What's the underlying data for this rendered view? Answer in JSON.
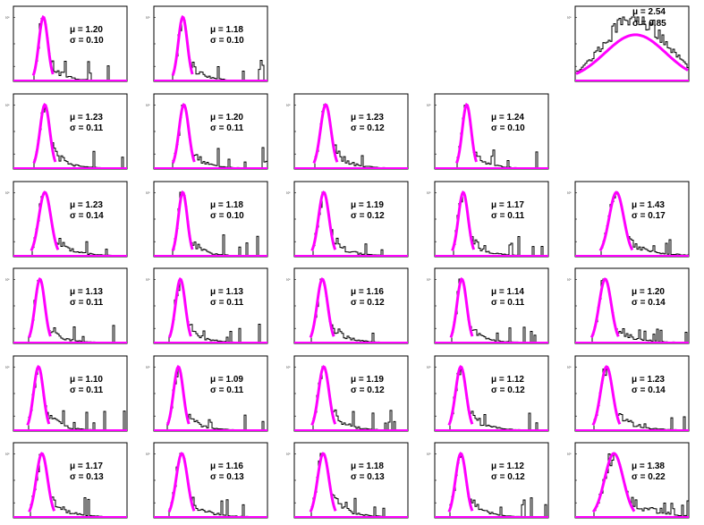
{
  "accent_color": "#ff00ff",
  "histogram_color": "#000000",
  "chart_data": {
    "type": "histogram-grid",
    "rows": 6,
    "cols": 5,
    "tick_label": "10³",
    "xlabel": "",
    "ylabel": "",
    "panels": [
      {
        "row": 0,
        "col": 0,
        "mu": "1.20",
        "sigma": "0.10",
        "fit": "gaussian"
      },
      {
        "row": 0,
        "col": 1,
        "mu": "1.18",
        "sigma": "0.10",
        "fit": "gaussian"
      },
      {
        "row": 0,
        "col": 4,
        "mu": "2.54",
        "sigma": "0.85",
        "fit": "gaussian"
      },
      {
        "row": 1,
        "col": 0,
        "mu": "1.23",
        "sigma": "0.11",
        "fit": "gaussian"
      },
      {
        "row": 1,
        "col": 1,
        "mu": "1.20",
        "sigma": "0.11",
        "fit": "gaussian"
      },
      {
        "row": 1,
        "col": 2,
        "mu": "1.23",
        "sigma": "0.12",
        "fit": "gaussian"
      },
      {
        "row": 1,
        "col": 3,
        "mu": "1.24",
        "sigma": "0.10",
        "fit": "gaussian"
      },
      {
        "row": 2,
        "col": 0,
        "mu": "1.23",
        "sigma": "0.14",
        "fit": "gaussian"
      },
      {
        "row": 2,
        "col": 1,
        "mu": "1.18",
        "sigma": "0.10",
        "fit": "gaussian"
      },
      {
        "row": 2,
        "col": 2,
        "mu": "1.19",
        "sigma": "0.12",
        "fit": "gaussian"
      },
      {
        "row": 2,
        "col": 3,
        "mu": "1.17",
        "sigma": "0.11",
        "fit": "gaussian"
      },
      {
        "row": 2,
        "col": 4,
        "mu": "1.43",
        "sigma": "0.17",
        "fit": "gaussian"
      },
      {
        "row": 3,
        "col": 0,
        "mu": "1.13",
        "sigma": "0.11",
        "fit": "gaussian"
      },
      {
        "row": 3,
        "col": 1,
        "mu": "1.13",
        "sigma": "0.11",
        "fit": "gaussian"
      },
      {
        "row": 3,
        "col": 2,
        "mu": "1.16",
        "sigma": "0.12",
        "fit": "gaussian"
      },
      {
        "row": 3,
        "col": 3,
        "mu": "1.14",
        "sigma": "0.11",
        "fit": "gaussian"
      },
      {
        "row": 3,
        "col": 4,
        "mu": "1.20",
        "sigma": "0.14",
        "fit": "gaussian"
      },
      {
        "row": 4,
        "col": 0,
        "mu": "1.10",
        "sigma": "0.11",
        "fit": "gaussian"
      },
      {
        "row": 4,
        "col": 1,
        "mu": "1.09",
        "sigma": "0.11",
        "fit": "gaussian"
      },
      {
        "row": 4,
        "col": 2,
        "mu": "1.19",
        "sigma": "0.12",
        "fit": "gaussian"
      },
      {
        "row": 4,
        "col": 3,
        "mu": "1.12",
        "sigma": "0.12",
        "fit": "gaussian"
      },
      {
        "row": 4,
        "col": 4,
        "mu": "1.23",
        "sigma": "0.14",
        "fit": "gaussian"
      },
      {
        "row": 5,
        "col": 0,
        "mu": "1.17",
        "sigma": "0.13",
        "fit": "gaussian"
      },
      {
        "row": 5,
        "col": 1,
        "mu": "1.16",
        "sigma": "0.13",
        "fit": "gaussian"
      },
      {
        "row": 5,
        "col": 2,
        "mu": "1.18",
        "sigma": "0.13",
        "fit": "gaussian"
      },
      {
        "row": 5,
        "col": 3,
        "mu": "1.12",
        "sigma": "0.12",
        "fit": "gaussian"
      },
      {
        "row": 5,
        "col": 4,
        "mu": "1.38",
        "sigma": "0.22",
        "fit": "gaussian"
      }
    ]
  }
}
